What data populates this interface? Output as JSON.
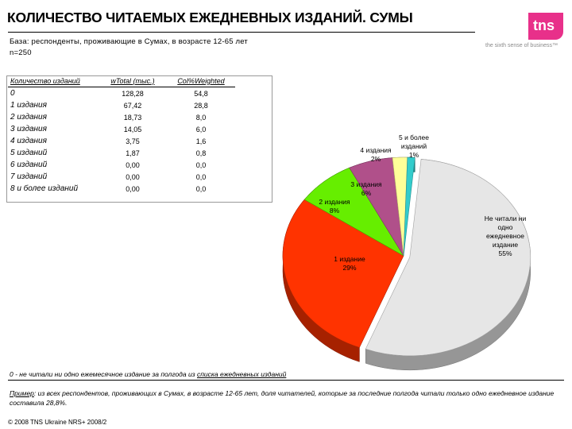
{
  "title": "КОЛИЧЕСТВО ЧИТАЕМЫХ ЕЖЕДНЕВНЫХ ИЗДАНИЙ. СУМЫ",
  "base_line1": "База: респонденты, проживающие в Сумах, в возрасте 12-65 лет",
  "base_line2": "n=250",
  "logo": {
    "text": "tns",
    "tagline": "the sixth sense of business™",
    "color": "#e8308a"
  },
  "table": {
    "headers": [
      "Количество изданий",
      "wTotal (тыс.)",
      "Col%Weighted"
    ],
    "rows": [
      {
        "label": "0",
        "wtotal": "128,28",
        "col": "54,8"
      },
      {
        "label": "1 издания",
        "wtotal": "67,42",
        "col": "28,8"
      },
      {
        "label": "2 издания",
        "wtotal": "18,73",
        "col": "8,0"
      },
      {
        "label": "3 издания",
        "wtotal": "14,05",
        "col": "6,0"
      },
      {
        "label": "4 издания",
        "wtotal": "3,75",
        "col": "1,6"
      },
      {
        "label": "5 изданий",
        "wtotal": "1,87",
        "col": "0,8"
      },
      {
        "label": "6 изданий",
        "wtotal": "0,00",
        "col": "0,0"
      },
      {
        "label": "7 изданий",
        "wtotal": "0,00",
        "col": "0,0"
      },
      {
        "label": "8 и более изданий",
        "wtotal": "0,00",
        "col": "0,0"
      }
    ]
  },
  "chart_data": {
    "type": "pie",
    "slices": [
      {
        "label": "Не читали ни одно ежедневное издание",
        "value": 55,
        "display": "55%",
        "color": "#e6e6e6"
      },
      {
        "label": "1 издание",
        "value": 29,
        "display": "29%",
        "color": "#ff3300"
      },
      {
        "label": "2 издания",
        "value": 8,
        "display": "8%",
        "color": "#66ee00"
      },
      {
        "label": "3 издания",
        "value": 6,
        "display": "6%",
        "color": "#b0508a"
      },
      {
        "label": "4 издания",
        "value": 2,
        "display": "2%",
        "color": "#ffff99"
      },
      {
        "label": "5 и более изданий",
        "value": 1,
        "display": "1%",
        "color": "#33cccc"
      }
    ],
    "labels": {
      "none_lines": [
        "Не читали ни",
        "одно",
        "ежедневное",
        "издание",
        "55%"
      ],
      "one_lines": [
        "1 издание",
        "29%"
      ],
      "two_lines": [
        "2 издания",
        "8%"
      ],
      "three_lines": [
        "3 издания",
        "6%"
      ],
      "four_lines": [
        "4 издания",
        "2%"
      ],
      "five_lines": [
        "5 и более",
        "изданий",
        "1%"
      ]
    }
  },
  "footnote": {
    "prefix": "0 - не читали ни одно ежемесячное издание за полгода из ",
    "link": "списка ежедневных изданий"
  },
  "example": {
    "label": "Пример",
    "text": ": из всех респондентов, проживающих в Сумах, в возрасте 12-65 лет, доля читателей, которые за последние полгода читали только одно ежедневное издание составила  28,8%."
  },
  "copyright": "© 2008 TNS Ukraine  NRS+ 2008/2"
}
